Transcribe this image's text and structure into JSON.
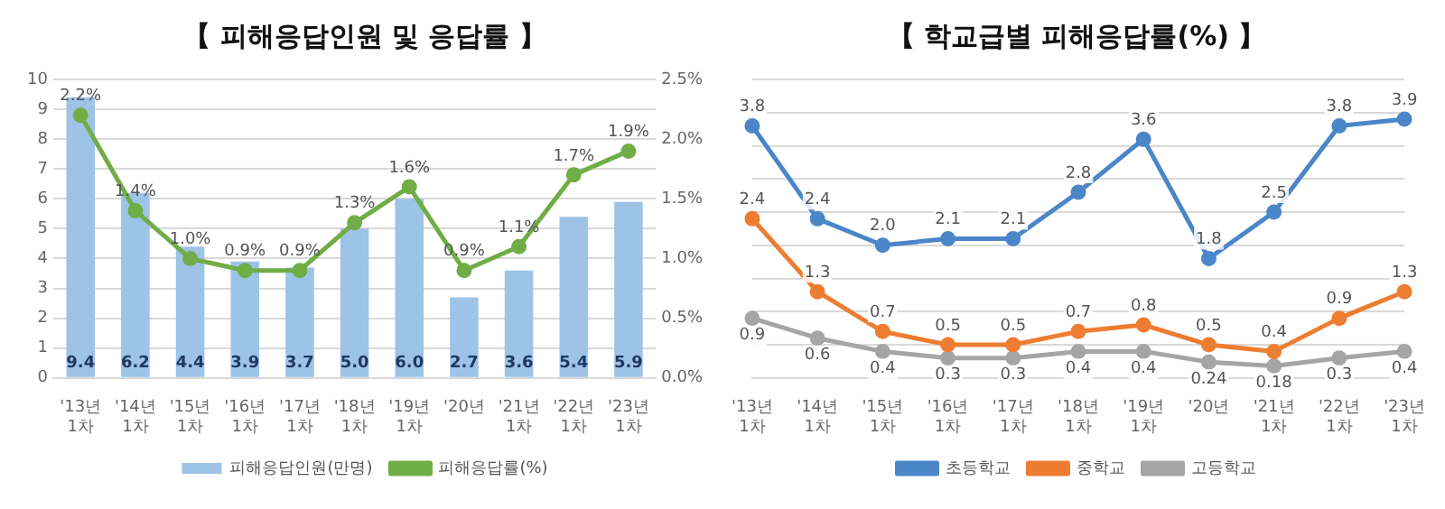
{
  "chart_data": [
    {
      "type": "bar",
      "title": "【 피해응답인원 및 응답률 】",
      "categories": [
        "'13년 1차",
        "'14년 1차",
        "'15년 1차",
        "'16년 1차",
        "'17년 1차",
        "'18년 1차",
        "'19년 1차",
        "'20년",
        "'21년 1차",
        "'22년 1차",
        "'23년 1차"
      ],
      "series": [
        {
          "name": "피해응답인원(만명)",
          "type": "bar",
          "color": "#9dc3e6",
          "values": [
            9.4,
            6.2,
            4.4,
            3.9,
            3.7,
            5.0,
            6.0,
            2.7,
            3.6,
            5.4,
            5.9
          ],
          "value_labels": [
            "9.4",
            "6.2",
            "4.4",
            "3.9",
            "3.7",
            "5.0",
            "6.0",
            "2.7",
            "3.6",
            "5.4",
            "5.9"
          ]
        },
        {
          "name": "피해응답률(%)",
          "type": "line",
          "axis": "y2",
          "color": "#70ad47",
          "values": [
            2.2,
            1.4,
            1.0,
            0.9,
            0.9,
            1.3,
            1.6,
            0.9,
            1.1,
            1.7,
            1.9
          ],
          "value_labels": [
            "2.2%",
            "1.4%",
            "1.0%",
            "0.9%",
            "0.9%",
            "1.3%",
            "1.6%",
            "0.9%",
            "1.1%",
            "1.7%",
            "1.9%"
          ]
        }
      ],
      "ylim": [
        0,
        10
      ],
      "yticks": [
        0,
        1,
        2,
        3,
        4,
        5,
        6,
        7,
        8,
        9,
        10
      ],
      "y2lim": [
        0,
        2.5
      ],
      "y2ticks": [
        {
          "value": 0,
          "label": "0.0%"
        },
        {
          "value": 0.5,
          "label": "0.5%"
        },
        {
          "value": 1,
          "label": "1.0%"
        },
        {
          "value": 1.5,
          "label": "1.5%"
        },
        {
          "value": 2,
          "label": "2.0%"
        },
        {
          "value": 2.5,
          "label": "2.5%"
        }
      ],
      "grid": "y",
      "legend": "bottom",
      "marker": "circle"
    },
    {
      "type": "line",
      "title": "【 학교급별 피해응답률(%) 】",
      "categories": [
        "'13년 1차",
        "'14년 1차",
        "'15년 1차",
        "'16년 1차",
        "'17년 1차",
        "'18년 1차",
        "'19년 1차",
        "'20년",
        "'21년 1차",
        "'22년 1차",
        "'23년 1차"
      ],
      "series": [
        {
          "name": "초등학교",
          "color": "#4a86c8",
          "values": [
            3.8,
            2.4,
            2.0,
            2.1,
            2.1,
            2.8,
            3.6,
            1.8,
            2.5,
            3.8,
            3.9
          ],
          "value_labels": [
            "3.8",
            "2.4",
            "2.0",
            "2.1",
            "2.1",
            "2.8",
            "3.6",
            "1.8",
            "2.5",
            "3.8",
            "3.9"
          ]
        },
        {
          "name": "중학교",
          "color": "#ed7d31",
          "values": [
            2.4,
            1.3,
            0.7,
            0.5,
            0.5,
            0.7,
            0.8,
            0.5,
            0.4,
            0.9,
            1.3
          ],
          "value_labels": [
            "2.4",
            "1.3",
            "0.7",
            "0.5",
            "0.5",
            "0.7",
            "0.8",
            "0.5",
            "0.4",
            "0.9",
            "1.3"
          ]
        },
        {
          "name": "고등학교",
          "color": "#a5a5a5",
          "values": [
            0.9,
            0.6,
            0.4,
            0.3,
            0.3,
            0.4,
            0.4,
            0.24,
            0.18,
            0.3,
            0.4
          ],
          "value_labels": [
            "0.9",
            "0.6",
            "0.4",
            "0.3",
            "0.3",
            "0.4",
            "0.4",
            "0.24",
            "0.18",
            "0.3",
            "0.4"
          ]
        }
      ],
      "ylim": [
        0,
        4.5
      ],
      "yticks": [
        {
          "value": 0,
          "label": null
        },
        {
          "value": 0.5,
          "label": null
        },
        {
          "value": 1,
          "label": null
        },
        {
          "value": 1.5,
          "label": null
        },
        {
          "value": 2,
          "label": null
        },
        {
          "value": 2.5,
          "label": null
        },
        {
          "value": 3,
          "label": null
        },
        {
          "value": 3.5,
          "label": null
        },
        {
          "value": 4,
          "label": null
        },
        {
          "value": 4.5,
          "label": null
        }
      ],
      "grid": "y",
      "legend": "bottom",
      "marker": "circle",
      "tick_labels": "x"
    }
  ]
}
